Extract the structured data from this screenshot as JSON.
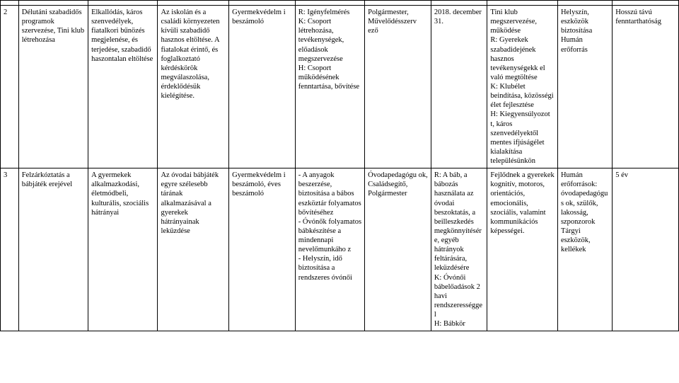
{
  "rows": [
    {
      "id": "2",
      "c1": "Délutáni szabadidős programok szervezése, Tini klub létrehozása",
      "c2": "Elkallódás, káros szenvedélyek, fiatalkori bűnözés megjelenése, és terjedése, szabadidő haszontalan eltöltése",
      "c3": "Az iskolán és a családi környezeten kívüli szabadidő hasznos eltöltése. A fiatalokat érintő, és foglalkoztató kérdéskörök megválaszolása, érdeklődésük kielégítése.",
      "c4": "Gyermekvédelm i beszámoló",
      "c5": "R: Igényfelmérés\nK: Csoport létrehozása, tevékenységek, előadások megszervezése\nH: Csoport működésének fenntartása, bővítése",
      "c6": "Polgármester, Művelődésszerv ező",
      "c7": "2018. december 31.",
      "c8": "Tini klub megszervezése, működése\nR: Gyerekek szabadidejének hasznos tevékenységekk el való megtöltése\nK: Klubélet beindítása, közösségi élet fejlesztése\nH: Kiegyensúlyozot t, káros szenvedélyektől mentes ifjúságélet kialakítása településünkön",
      "c9": "Helyszín, eszközök biztosítása\nHumán erőforrás",
      "c10": "Hosszú távú fenntarthatóság"
    },
    {
      "id": "3",
      "c1": "Felzárkóztatás a bábjáték erejével",
      "c2": "A gyermekek alkalmazkodási, életmódbeli, kulturális, szociális hátrányai",
      "c3": "Az óvodai bábjáték egyre szélesebb tárának alkalmazásával a gyerekek hátrányainak leküzdése",
      "c4": "Gyermekvédelm i beszámoló, éves beszámoló",
      "c5": "- A anyagok beszerzése, biztosítása a bábos eszköztár folyamatos bővítéséhez\n- Óvónők folyamatos bábkészítése a mindennapi nevelőmunkáho z\n- Helyszín, idő biztosítása a rendszeres óvónői",
      "c6": "Óvodapedagógu ok, Családsegítő, Polgármester",
      "c7": "R: A báb, a bábozás használata az óvodai beszoktatás, a beilleszkedés megkönnyítésér e, egyéb hátrányok feltárására, leküzdésére\nK: Óvónői bábelőadások 2 havi rendszerességgel\nH: Bábkör",
      "c8": "Fejlődnek a gyerekek kognitív, motoros, orientációs, emocionális, szociális, valamint kommunikációs képességei.",
      "c9": "Humán erőforrások: óvodapedagógus ok, szülők, lakosság, szponzorok\nTárgyi eszközök, kellékek",
      "c10": "5 év"
    }
  ]
}
